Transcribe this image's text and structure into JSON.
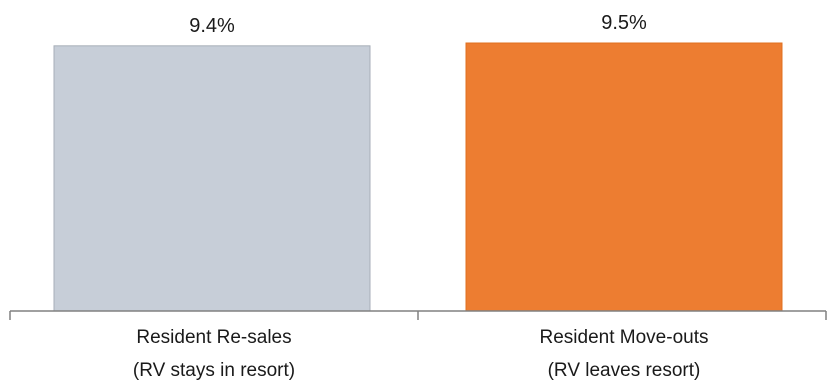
{
  "chart_data": {
    "type": "bar",
    "categories": [
      [
        "Resident Re-sales",
        "(RV stays in resort)"
      ],
      [
        "Resident Move-outs",
        "(RV leaves resort)"
      ]
    ],
    "values": [
      9.4,
      9.5
    ],
    "data_labels": [
      "9.4%",
      "9.5%"
    ],
    "colors": [
      "#c7ced8",
      "#ed7d31"
    ],
    "edge_colors": [
      "#a7aeb8",
      "#e07020"
    ],
    "ylim": [
      0,
      9.5
    ],
    "grid": false,
    "legend": "none",
    "title": "",
    "xlabel": "",
    "ylabel": ""
  }
}
